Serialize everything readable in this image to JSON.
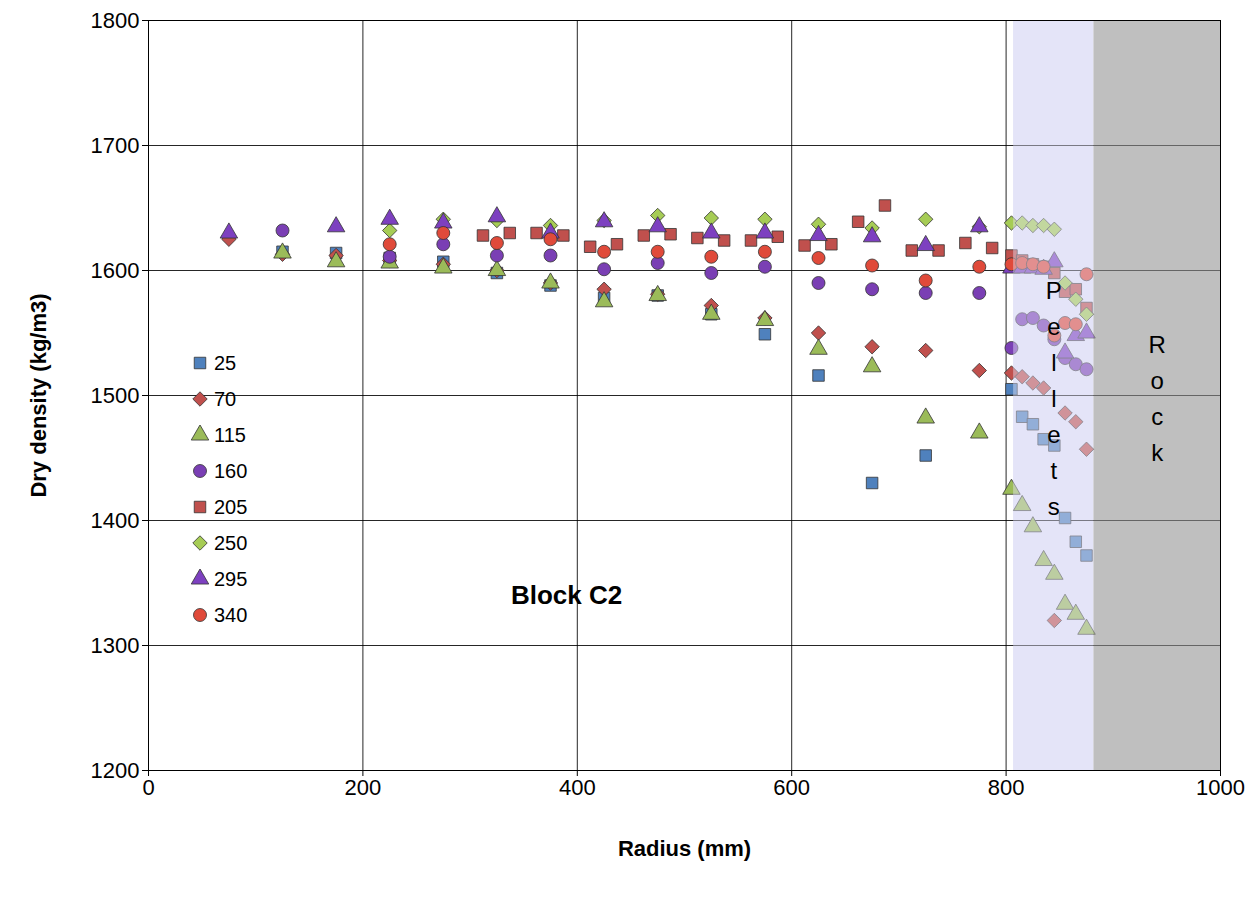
{
  "chart_data": {
    "type": "scatter",
    "xlabel": "Radius (mm)",
    "ylabel": "Dry density (kg/m3)",
    "xlim": [
      0,
      1000
    ],
    "xticks": [
      0,
      200,
      400,
      600,
      800,
      1000
    ],
    "ylim": [
      1200,
      1800
    ],
    "yticks": [
      1200,
      1300,
      1400,
      1500,
      1600,
      1700,
      1800
    ],
    "grid": true,
    "legend": "left",
    "series": [
      {
        "name": "25",
        "color": "#4f81bd",
        "marker": "square",
        "x": [
          125,
          175,
          225,
          275,
          325,
          375,
          425,
          475,
          525,
          575,
          625,
          675,
          725,
          805,
          815,
          825,
          835,
          845,
          855,
          865,
          875
        ],
        "values": [
          1615,
          1614,
          1610,
          1607,
          1598,
          1588,
          1578,
          1580,
          1565,
          1549,
          1516,
          1430,
          1452,
          1505,
          1483,
          1477,
          1465,
          1460,
          1402,
          1383,
          1372
        ]
      },
      {
        "name": "70",
        "color": "#c0504d",
        "marker": "diamond",
        "x": [
          75,
          125,
          175,
          225,
          275,
          325,
          375,
          425,
          475,
          525,
          575,
          625,
          675,
          725,
          775,
          805,
          815,
          825,
          835,
          845,
          855,
          865,
          875
        ],
        "values": [
          1625,
          1613,
          1612,
          1608,
          1605,
          1600,
          1590,
          1585,
          1581,
          1572,
          1562,
          1550,
          1539,
          1536,
          1520,
          1518,
          1515,
          1510,
          1506,
          1320,
          1486,
          1479,
          1457
        ]
      },
      {
        "name": "115",
        "color": "#9bbb59",
        "marker": "triangle",
        "x": [
          125,
          175,
          225,
          275,
          325,
          375,
          425,
          475,
          525,
          575,
          625,
          675,
          725,
          775,
          805,
          815,
          825,
          835,
          845,
          855,
          865,
          875
        ],
        "values": [
          1614,
          1607,
          1606,
          1602,
          1600,
          1590,
          1575,
          1580,
          1565,
          1560,
          1537,
          1523,
          1482,
          1470,
          1425,
          1412,
          1395,
          1368,
          1357,
          1333,
          1325,
          1313
        ]
      },
      {
        "name": "160",
        "color": "#7a3fb4",
        "marker": "circle",
        "x": [
          125,
          225,
          275,
          325,
          375,
          425,
          475,
          525,
          575,
          625,
          675,
          725,
          775,
          805,
          815,
          825,
          835,
          845,
          855,
          865,
          875
        ],
        "values": [
          1632,
          1611,
          1621,
          1612,
          1612,
          1601,
          1606,
          1598,
          1603,
          1590,
          1585,
          1582,
          1582,
          1538,
          1561,
          1562,
          1556,
          1545,
          1530,
          1525,
          1521
        ]
      },
      {
        "name": "205",
        "color": "#c0504d",
        "marker": "square",
        "x": [
          312,
          337,
          362,
          387,
          412,
          437,
          462,
          487,
          512,
          537,
          562,
          587,
          612,
          637,
          662,
          687,
          712,
          737,
          762,
          787,
          805,
          815,
          825,
          835,
          845,
          855,
          865,
          875
        ],
        "values": [
          1628,
          1630,
          1630,
          1628,
          1619,
          1621,
          1628,
          1629,
          1626,
          1624,
          1624,
          1627,
          1620,
          1621,
          1639,
          1652,
          1616,
          1616,
          1622,
          1618,
          1612,
          1608,
          1605,
          1603,
          1598,
          1583,
          1585,
          1570
        ]
      },
      {
        "name": "250",
        "color": "#a6cc55",
        "marker": "diamond",
        "x": [
          225,
          275,
          325,
          375,
          425,
          475,
          525,
          575,
          625,
          675,
          725,
          775,
          805,
          815,
          825,
          835,
          845,
          855,
          865,
          875
        ],
        "values": [
          1632,
          1641,
          1640,
          1636,
          1640,
          1644,
          1642,
          1641,
          1637,
          1634,
          1641,
          1635,
          1638,
          1638,
          1636,
          1636,
          1633,
          1590,
          1577,
          1565
        ]
      },
      {
        "name": "295",
        "color": "#7d40c0",
        "marker": "triangle",
        "x": [
          75,
          175,
          225,
          275,
          325,
          375,
          425,
          475,
          525,
          575,
          625,
          675,
          725,
          775,
          805,
          815,
          825,
          835,
          845,
          855,
          865,
          875
        ],
        "values": [
          1630,
          1635,
          1641,
          1638,
          1643,
          1630,
          1639,
          1635,
          1630,
          1630,
          1628,
          1627,
          1620,
          1635,
          1602,
          1602,
          1602,
          1601,
          1607,
          1534,
          1548,
          1550
        ]
      },
      {
        "name": "340",
        "color": "#e04a3a",
        "marker": "circle",
        "x": [
          225,
          275,
          325,
          375,
          425,
          475,
          525,
          575,
          625,
          675,
          725,
          775,
          805,
          815,
          825,
          835,
          845,
          855,
          865,
          875
        ],
        "values": [
          1621,
          1630,
          1622,
          1625,
          1615,
          1615,
          1611,
          1615,
          1610,
          1604,
          1592,
          1603,
          1605,
          1606,
          1605,
          1603,
          1548,
          1558,
          1557,
          1597
        ]
      }
    ],
    "regions": [
      {
        "label": "Pellets",
        "x0": 807,
        "x1": 882,
        "color": "#e4e4f8"
      },
      {
        "label": "Rock",
        "x0": 882,
        "x1": 1000,
        "color": "#bfbfbf"
      }
    ],
    "annotations": [
      {
        "text": "Block C2",
        "x": 390,
        "y": 1340
      }
    ]
  }
}
